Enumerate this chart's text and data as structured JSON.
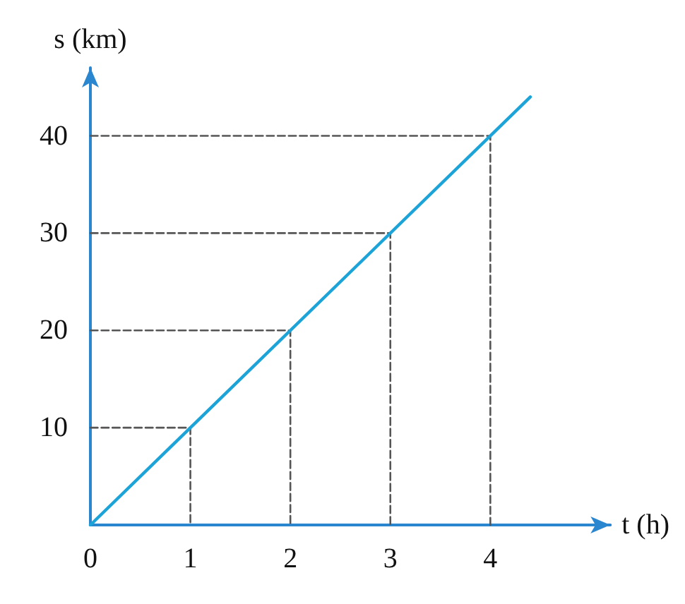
{
  "chart_data": {
    "type": "line",
    "xlabel": "t (h)",
    "ylabel": "s (km)",
    "xlim": [
      0,
      5.2
    ],
    "ylim": [
      0,
      47
    ],
    "xticks": [
      0,
      1,
      2,
      3,
      4
    ],
    "yticks": [
      10,
      20,
      30,
      40
    ],
    "grid": false,
    "marker": "none",
    "series": [
      {
        "color": "#1ca3d8",
        "line_style": "solid",
        "x": [
          0,
          4.4
        ],
        "values": [
          0,
          44
        ]
      },
      {
        "color": "#555555",
        "line_style": "dashed",
        "x": [
          0,
          1,
          1
        ],
        "values": [
          10,
          10,
          0
        ]
      },
      {
        "color": "#555555",
        "line_style": "dashed",
        "x": [
          0,
          2,
          2
        ],
        "values": [
          20,
          20,
          0
        ]
      },
      {
        "color": "#555555",
        "line_style": "dashed",
        "x": [
          0,
          3,
          3
        ],
        "values": [
          30,
          30,
          0
        ]
      },
      {
        "color": "#555555",
        "line_style": "dashed",
        "x": [
          0,
          4,
          4
        ],
        "values": [
          40,
          40,
          0
        ]
      }
    ]
  }
}
